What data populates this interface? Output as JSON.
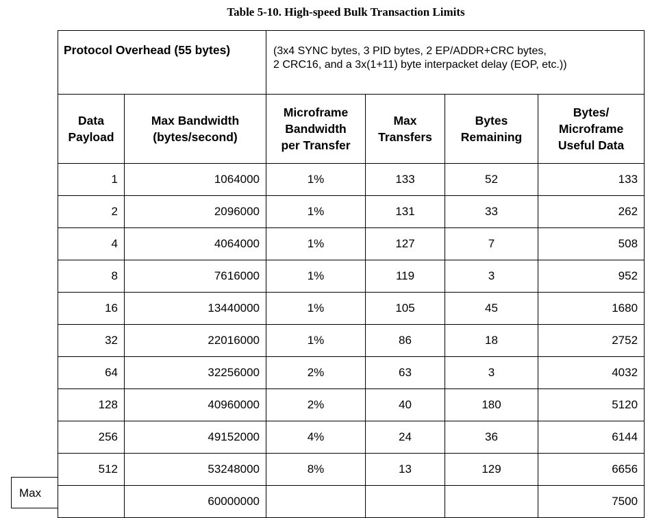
{
  "caption": "Table 5-10.  High-speed Bulk Transaction Limits",
  "overhead": {
    "label": "Protocol Overhead (55 bytes)",
    "desc_line1": "(3x4 SYNC bytes, 3 PID bytes, 2 EP/ADDR+CRC bytes,",
    "desc_line2": "2 CRC16, and a 3x(1+11) byte interpacket delay (EOP, etc.))"
  },
  "headers": [
    [
      "Data",
      "Payload"
    ],
    [
      "Max Bandwidth",
      "(bytes/second)"
    ],
    [
      "Microframe",
      "Bandwidth",
      "per Transfer"
    ],
    [
      "Max",
      "Transfers"
    ],
    [
      "Bytes",
      "Remaining"
    ],
    [
      "Bytes/",
      "Microframe",
      "Useful Data"
    ]
  ],
  "rows": [
    [
      "1",
      "1064000",
      "1%",
      "133",
      "52",
      "133"
    ],
    [
      "2",
      "2096000",
      "1%",
      "131",
      "33",
      "262"
    ],
    [
      "4",
      "4064000",
      "1%",
      "127",
      "7",
      "508"
    ],
    [
      "8",
      "7616000",
      "1%",
      "119",
      "3",
      "952"
    ],
    [
      "16",
      "13440000",
      "1%",
      "105",
      "45",
      "1680"
    ],
    [
      "32",
      "22016000",
      "1%",
      "86",
      "18",
      "2752"
    ],
    [
      "64",
      "32256000",
      "2%",
      "63",
      "3",
      "4032"
    ],
    [
      "128",
      "40960000",
      "2%",
      "40",
      "180",
      "5120"
    ],
    [
      "256",
      "49152000",
      "4%",
      "24",
      "36",
      "6144"
    ],
    [
      "512",
      "53248000",
      "8%",
      "13",
      "129",
      "6656"
    ]
  ],
  "max_row": {
    "label": "Max",
    "cells": [
      "",
      "60000000",
      "",
      "",
      "",
      "7500"
    ]
  }
}
